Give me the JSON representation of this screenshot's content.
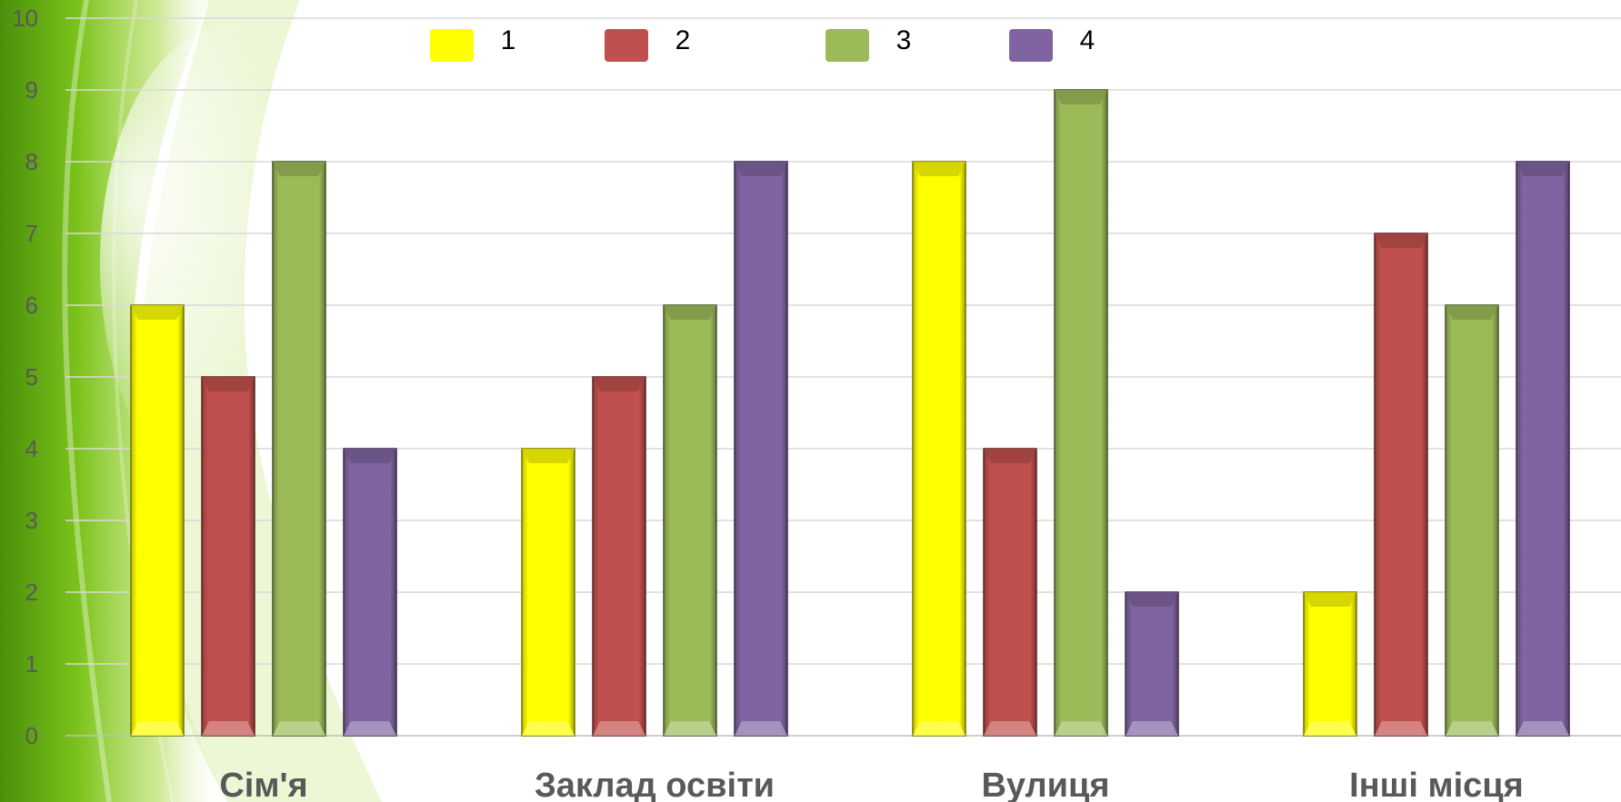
{
  "chart_data": {
    "type": "bar",
    "title": "",
    "xlabel": "",
    "ylabel": "",
    "categories": [
      "Сім'я",
      "Заклад освіти",
      "Вулиця",
      "Інші місця"
    ],
    "series": [
      {
        "name": "1",
        "color": "#FFFF00",
        "values": [
          6,
          4,
          8,
          2
        ]
      },
      {
        "name": "2",
        "color": "#C0504D",
        "values": [
          5,
          5,
          4,
          7
        ]
      },
      {
        "name": "3",
        "color": "#9BBB59",
        "values": [
          8,
          6,
          9,
          6
        ]
      },
      {
        "name": "4",
        "color": "#8064A2",
        "values": [
          4,
          8,
          2,
          8
        ]
      }
    ],
    "ylim": [
      0,
      10
    ],
    "yticks": [
      "0",
      "1",
      "2",
      "3",
      "4",
      "5",
      "6",
      "7",
      "8",
      "9",
      "10"
    ],
    "grid": true,
    "legend_position": "top-center"
  }
}
